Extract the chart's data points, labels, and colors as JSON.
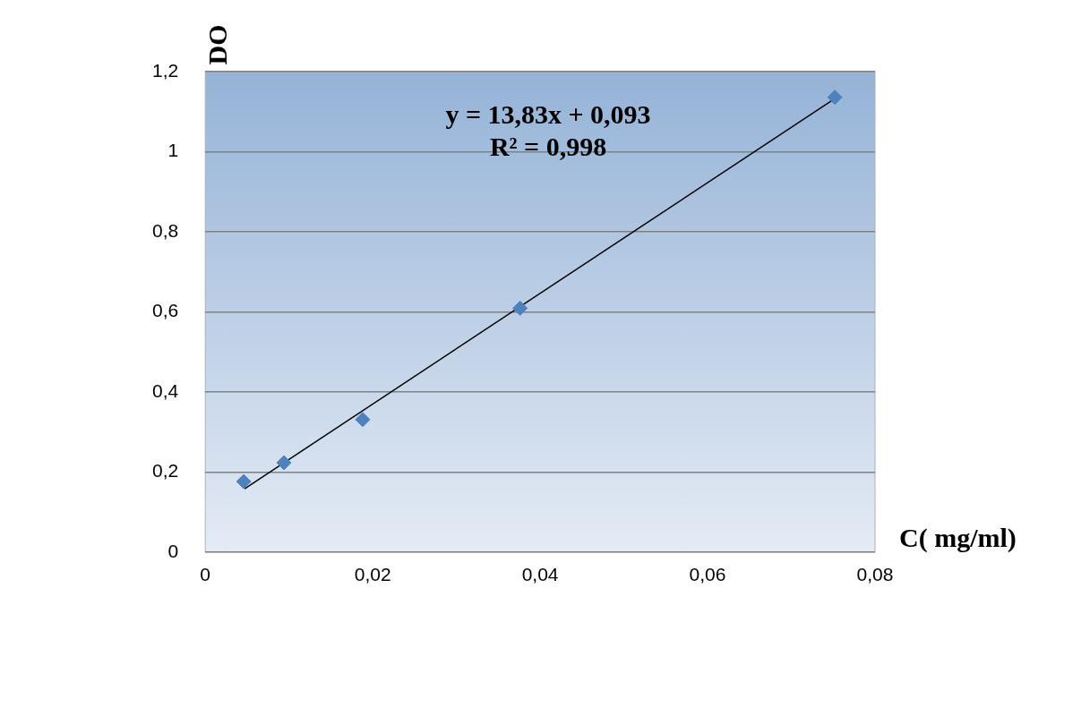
{
  "chart_data": {
    "type": "scatter",
    "xlabel": "C( mg/ml)",
    "ylabel": "DO",
    "x": [
      0.0046,
      0.0094,
      0.0188,
      0.0376,
      0.0752
    ],
    "series": [
      {
        "color": "#4f81bd",
        "marker": "diamond",
        "values": [
          0.176,
          0.223,
          0.331,
          0.609,
          1.136
        ]
      },
      {
        "type": "line",
        "marker": "none",
        "color": "#000000",
        "x": [
          0.0047,
          0.075
        ],
        "values": [
          0.158,
          1.13
        ]
      }
    ],
    "xlim": [
      0,
      0.08
    ],
    "xticks": [
      0,
      {
        "value": 0.02,
        "label": "0,02"
      },
      {
        "value": 0.04,
        "label": "0,04"
      },
      {
        "value": 0.06,
        "label": "0,06"
      },
      {
        "value": 0.08,
        "label": "0,08"
      }
    ],
    "ylim": [
      0,
      1.2
    ],
    "yticks": [
      0,
      {
        "value": 0.2,
        "label": "0,2"
      },
      {
        "value": 0.4,
        "label": "0,4"
      },
      {
        "value": 0.6,
        "label": "0,6"
      },
      {
        "value": 0.8,
        "label": "0,8"
      },
      1,
      {
        "value": 1.2,
        "label": "1,2"
      }
    ],
    "grid": "y",
    "legend": false,
    "annotations": [
      "y = 13,83x + 0,093",
      "R² = 0,998"
    ]
  }
}
